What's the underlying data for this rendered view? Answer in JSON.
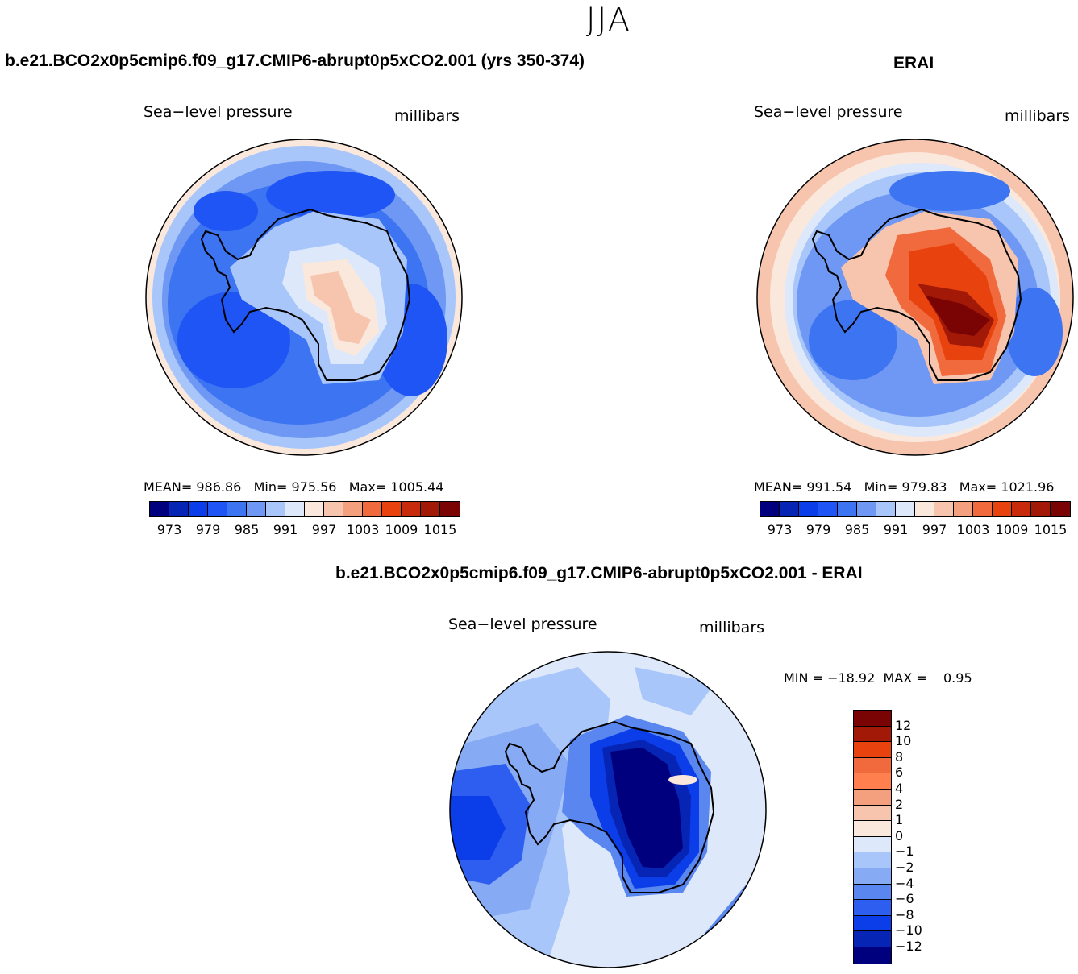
{
  "season": "JJA",
  "colors": {
    "abs_palette": [
      "#00007f",
      "#0625b4",
      "#0b3ee8",
      "#1f55f4",
      "#3d74f2",
      "#6e98f4",
      "#a8c6fa",
      "#dde9fb",
      "#fbe8dc",
      "#f7c5ae",
      "#f49f7e",
      "#f06a3d",
      "#e8420f",
      "#c82b0b",
      "#a21a07",
      "#7a0403"
    ],
    "diff_palette": [
      "#7a0403",
      "#a21a07",
      "#e8420f",
      "#f06a3d",
      "#ff7f4f",
      "#f49f7e",
      "#f7c5ae",
      "#fbe8dc",
      "#dde9fb",
      "#a8c6fa",
      "#87aaf5",
      "#5a86f0",
      "#2d5ef0",
      "#0b3ee8",
      "#0625b4",
      "#00007f"
    ],
    "continent_outline": "#000000"
  },
  "panels": {
    "left": {
      "title": "b.e21.BCO2x0p5cmip6.f09_g17.CMIP6-abrupt0p5xCO2.001 (yrs 350-374)",
      "variable": "Sea−level pressure",
      "units": "millibars",
      "mean_label": "MEAN=",
      "mean": "986.86",
      "min_label": "Min=",
      "min": "975.56",
      "max_label": "Max=",
      "max": "1005.44"
    },
    "right": {
      "title": "ERAI",
      "variable": "Sea−level pressure",
      "units": "millibars",
      "mean_label": "MEAN=",
      "mean": "991.54",
      "min_label": "Min=",
      "min": "979.83",
      "max_label": "Max=",
      "max": "1021.96"
    },
    "diff": {
      "title": "b.e21.BCO2x0p5cmip6.f09_g17.CMIP6-abrupt0p5xCO2.001 - ERAI",
      "variable": "Sea−level pressure",
      "units": "millibars",
      "minmax": "MIN = −18.92  MAX =    0.95"
    }
  },
  "chart_data": [
    {
      "type": "heatmap",
      "projection": "south-polar stereographic",
      "title": "b.e21.BCO2x0p5cmip6.f09_g17.CMIP6-abrupt0p5xCO2.001 (yrs 350-374)",
      "variable": "Sea-level pressure",
      "units": "millibars",
      "mean": 986.86,
      "min": 975.56,
      "max": 1005.44,
      "colorbar_ticks": [
        "973",
        "979",
        "985",
        "991",
        "997",
        "1003",
        "1009",
        "1015"
      ],
      "colorbar_bins": 16
    },
    {
      "type": "heatmap",
      "projection": "south-polar stereographic",
      "title": "ERAI",
      "variable": "Sea-level pressure",
      "units": "millibars",
      "mean": 991.54,
      "min": 979.83,
      "max": 1021.96,
      "colorbar_ticks": [
        "973",
        "979",
        "985",
        "991",
        "997",
        "1003",
        "1009",
        "1015"
      ],
      "colorbar_bins": 16
    },
    {
      "type": "heatmap",
      "projection": "south-polar stereographic",
      "title": "b.e21.BCO2x0p5cmip6.f09_g17.CMIP6-abrupt0p5xCO2.001 - ERAI",
      "variable": "Sea-level pressure",
      "units": "millibars",
      "min": -18.92,
      "max": 0.95,
      "colorbar_ticks": [
        "12",
        "10",
        "8",
        "6",
        "4",
        "2",
        "1",
        "0",
        "−1",
        "−2",
        "−4",
        "−6",
        "−8",
        "−10",
        "−12"
      ],
      "colorbar_bins": 16
    }
  ]
}
